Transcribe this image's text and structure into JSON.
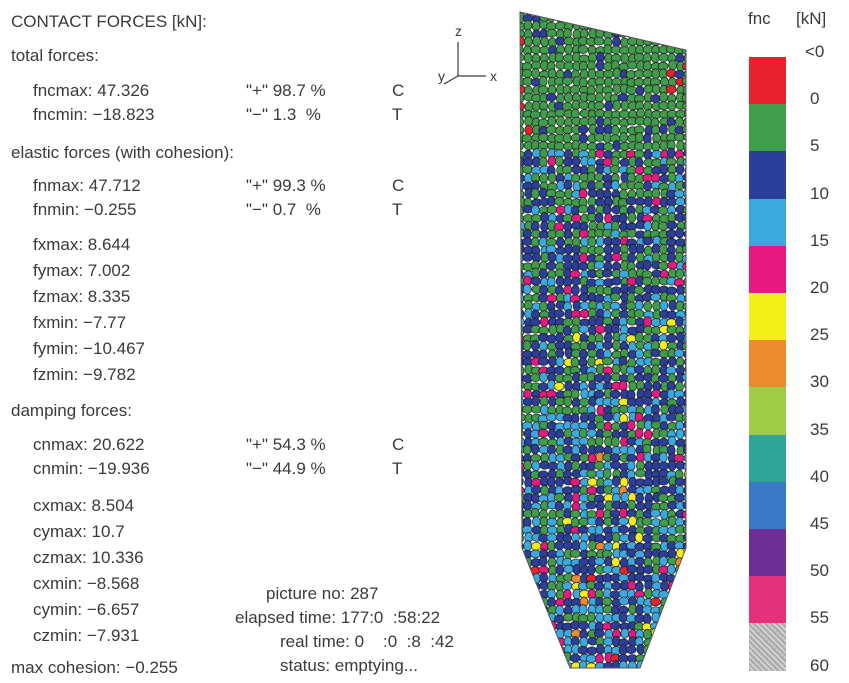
{
  "title": "CONTACT FORCES [kN]:",
  "total": {
    "heading": "total forces:",
    "max": {
      "label": "fncmax: 47.326",
      "sign": "\"+\" 98.7 %",
      "code": "C"
    },
    "min": {
      "label": "fncmin: −18.823",
      "sign": "\"−\" 1.3  %",
      "code": "T"
    }
  },
  "elastic": {
    "heading": "elastic forces (with cohesion):",
    "max": {
      "label": "fnmax: 47.712",
      "sign": "\"+\" 99.3 %",
      "code": "C"
    },
    "min": {
      "label": "fnmin: −0.255",
      "sign": "\"−\" 0.7  %",
      "code": "T"
    },
    "components": [
      "fxmax: 8.644",
      "fymax: 7.002",
      "fzmax: 8.335",
      "fxmin: −7.77",
      "fymin: −10.467",
      "fzmin: −9.782"
    ]
  },
  "damping": {
    "heading": "damping forces:",
    "max": {
      "label": "cnmax: 20.622",
      "sign": "\"+\" 54.3 %",
      "code": "C"
    },
    "min": {
      "label": "cnmin: −19.936",
      "sign": "\"−\" 44.9 %",
      "code": "T"
    },
    "components": [
      "cxmax: 8.504",
      "cymax: 10.7",
      "czmax: 10.336",
      "cxmin: −8.568",
      "cymin: −6.657",
      "czmin: −7.931"
    ]
  },
  "max_cohesion": "max cohesion: −0.255",
  "status": {
    "picture_no": "picture no: 287",
    "elapsed_time": "elapsed time: 177:0  :58:22",
    "real_time": "real time: 0    :0  :8  :42",
    "status": "status: emptying..."
  },
  "axes": {
    "z": "z",
    "y": "y",
    "x": "x"
  },
  "legend": {
    "quantity": "fnc",
    "unit": "[kN]",
    "labels": [
      "<0",
      "0",
      "5",
      "10",
      "15",
      "20",
      "25",
      "30",
      "35",
      "40",
      "45",
      "50",
      "55",
      "60"
    ],
    "colors": [
      "#e8212c",
      "#3f9c4a",
      "#2b3f9a",
      "#3aa9e0",
      "#e6197e",
      "#f5ee1a",
      "#ec8a2e",
      "#9ccd45",
      "#2fa59a",
      "#3a78c8",
      "#6d2f96",
      "#e4317a",
      "#b9b9b9"
    ]
  },
  "particle_colors": {
    "green": "#3f9c4a",
    "navy": "#2b3f9a",
    "cyan": "#3aa9e0",
    "magenta": "#e6197e",
    "yellow": "#f5ee1a",
    "orange": "#ec8a2e",
    "red": "#e8212c"
  }
}
